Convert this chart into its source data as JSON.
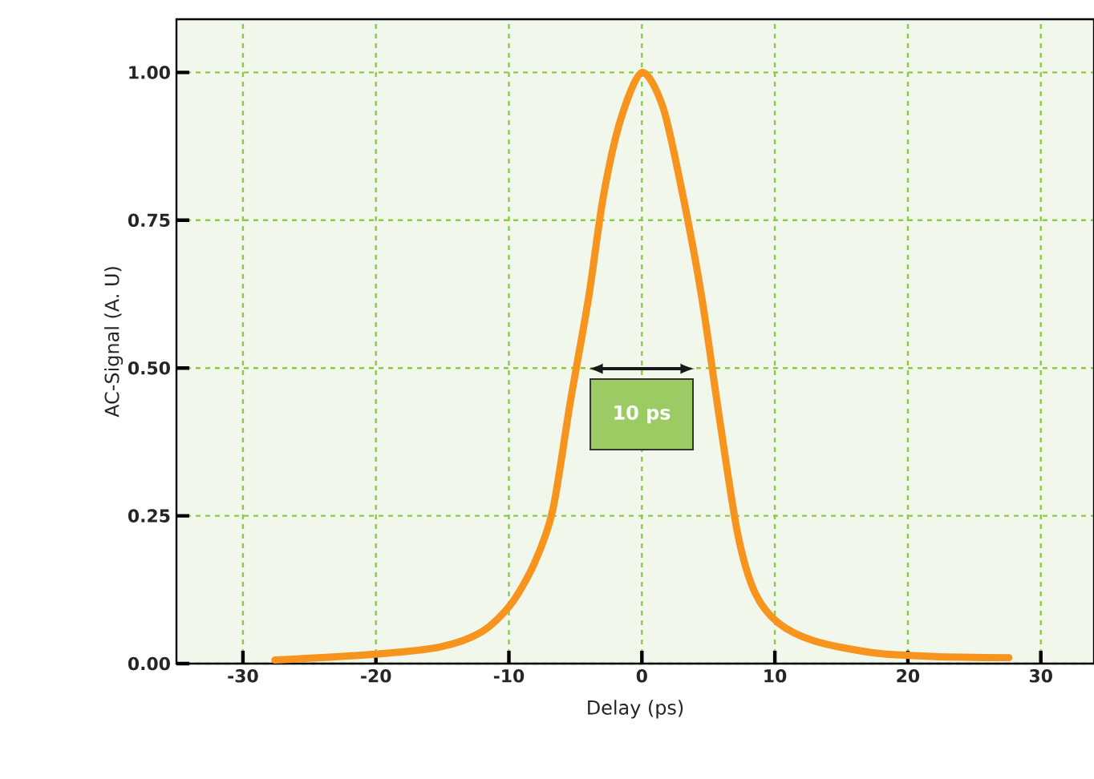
{
  "chart_data": {
    "type": "line",
    "xlabel": "Delay (ps)",
    "ylabel": "AC-Signal (A. U)",
    "x": [
      -27.6,
      -20,
      -15.2,
      -12.1,
      -9.9,
      -8.1,
      -6.7,
      -5.4,
      -4.0,
      -2.9,
      -1.6,
      0,
      1.6,
      3.1,
      4.5,
      5.8,
      7.2,
      8.5,
      10.3,
      13,
      17.5,
      22,
      27.6
    ],
    "series": [
      {
        "color": "#f7941d",
        "values": [
          0.006,
          0.016,
          0.028,
          0.053,
          0.099,
          0.169,
          0.26,
          0.44,
          0.62,
          0.79,
          0.92,
          1.0,
          0.94,
          0.79,
          0.62,
          0.42,
          0.22,
          0.12,
          0.068,
          0.038,
          0.018,
          0.012,
          0.01
        ]
      }
    ],
    "xlim": [
      -35,
      34
    ],
    "ylim": [
      0,
      1.09
    ],
    "xticks": [
      -30,
      -20,
      -10,
      0,
      10,
      20,
      30
    ],
    "yticks": [
      {
        "value": 0,
        "label": "0.00"
      },
      {
        "value": 0.25,
        "label": "0.25"
      },
      {
        "value": 0.5,
        "label": "0.50"
      },
      {
        "value": 0.75,
        "label": "0.75"
      },
      {
        "value": 1,
        "label": "1.00"
      }
    ],
    "grid": true,
    "line_style": "solid",
    "marker": "none",
    "annotations": [
      "10 ps"
    ]
  }
}
